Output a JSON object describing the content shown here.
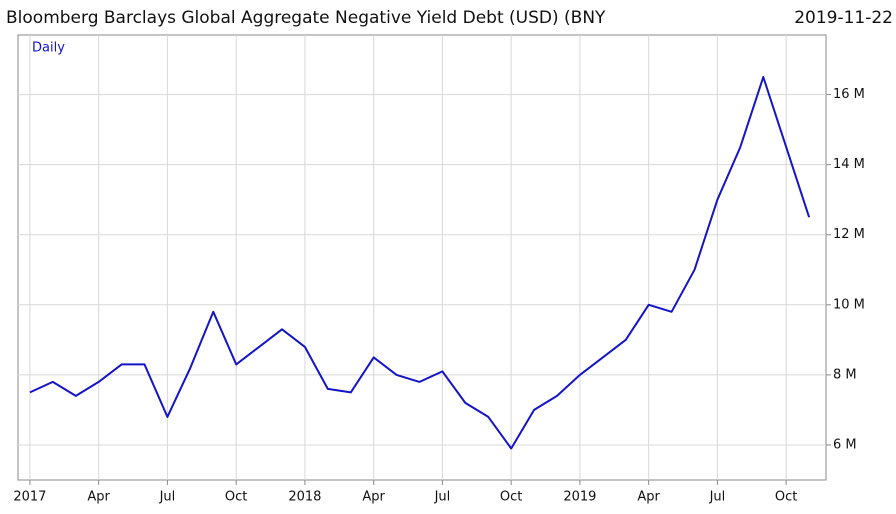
{
  "chart_data": {
    "type": "line",
    "title": "Bloomberg Barclays Global Aggregate Negative Yield Debt (USD) (BNY",
    "subtitle": "2019-11-22",
    "x": [
      "2017-01",
      "2017-02",
      "2017-03",
      "2017-04",
      "2017-05",
      "2017-06",
      "2017-07",
      "2017-08",
      "2017-09",
      "2017-10",
      "2017-11",
      "2017-12",
      "2018-01",
      "2018-02",
      "2018-03",
      "2018-04",
      "2018-05",
      "2018-06",
      "2018-07",
      "2018-08",
      "2018-09",
      "2018-10",
      "2018-11",
      "2018-12",
      "2019-01",
      "2019-02",
      "2019-03",
      "2019-04",
      "2019-05",
      "2019-06",
      "2019-07",
      "2019-08",
      "2019-09",
      "2019-10",
      "2019-11"
    ],
    "series": [
      {
        "name": "Daily",
        "color": "#1414c8",
        "values": [
          7.5,
          7.8,
          7.4,
          7.8,
          8.3,
          8.3,
          6.8,
          8.2,
          9.8,
          8.3,
          8.8,
          9.3,
          8.8,
          7.6,
          7.5,
          8.5,
          8.0,
          7.8,
          8.1,
          7.2,
          6.8,
          5.9,
          7.0,
          7.4,
          8.0,
          8.5,
          9.0,
          10.0,
          9.8,
          11.0,
          13.0,
          14.5,
          16.5,
          14.5,
          12.5
        ]
      }
    ],
    "xlim": [
      "2016-12",
      "2019-12"
    ],
    "xticks": [
      {
        "value": "2017-01",
        "label": "2017"
      },
      {
        "value": "2017-04",
        "label": "Apr"
      },
      {
        "value": "2017-07",
        "label": "Jul"
      },
      {
        "value": "2017-10",
        "label": "Oct"
      },
      {
        "value": "2018-01",
        "label": "2018"
      },
      {
        "value": "2018-04",
        "label": "Apr"
      },
      {
        "value": "2018-07",
        "label": "Jul"
      },
      {
        "value": "2018-10",
        "label": "Oct"
      },
      {
        "value": "2019-01",
        "label": "2019"
      },
      {
        "value": "2019-04",
        "label": "Apr"
      },
      {
        "value": "2019-07",
        "label": "Jul"
      },
      {
        "value": "2019-10",
        "label": "Oct"
      }
    ],
    "ylim": [
      5,
      17.7
    ],
    "yticks": [
      {
        "value": 6,
        "label": "6 M"
      },
      {
        "value": 8,
        "label": "8 M"
      },
      {
        "value": 10,
        "label": "10 M"
      },
      {
        "value": 12,
        "label": "12 M"
      },
      {
        "value": 14,
        "label": "14 M"
      },
      {
        "value": 16,
        "label": "16 M"
      }
    ],
    "grid": true
  }
}
